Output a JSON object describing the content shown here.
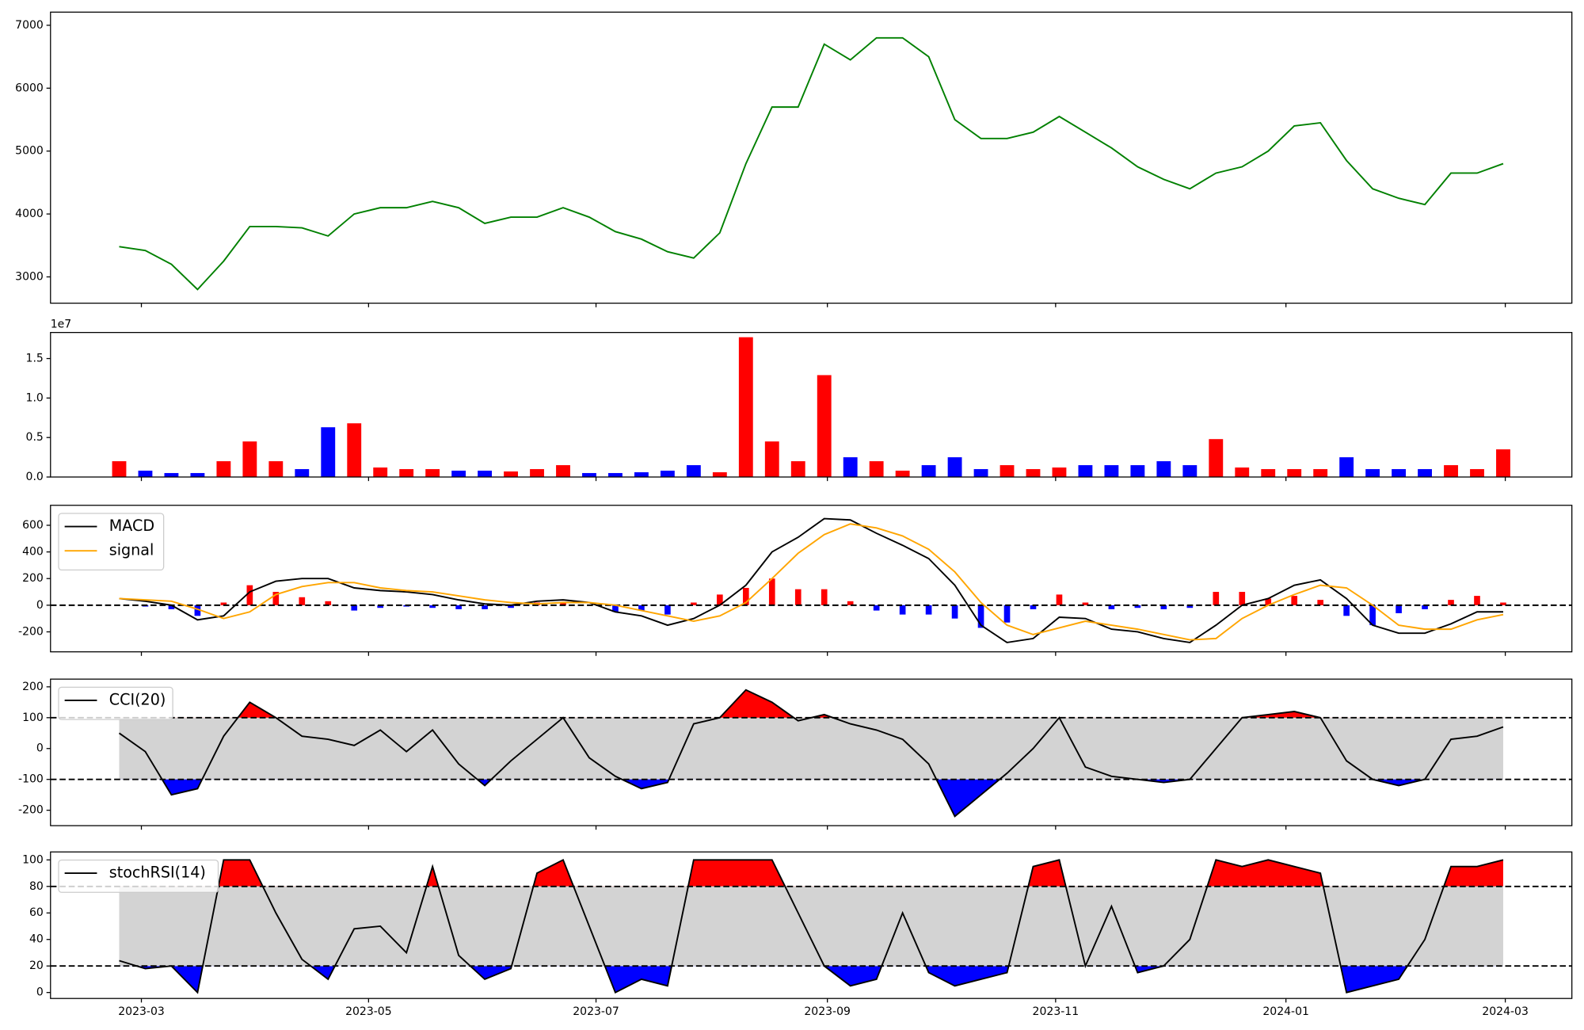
{
  "chart_data": [
    {
      "type": "line",
      "color": "green",
      "ylim": [
        2582,
        7209
      ],
      "yticks": [
        3000,
        4000,
        5000,
        6000,
        7000
      ],
      "values": [
        3480,
        3420,
        3200,
        2800,
        3250,
        3800,
        3800,
        3780,
        3650,
        4000,
        4100,
        4100,
        4200,
        4100,
        3850,
        3950,
        3950,
        4100,
        3950,
        3720,
        3600,
        3400,
        3300,
        3700,
        4800,
        5700,
        5700,
        6700,
        6450,
        6800,
        6800,
        6500,
        5500,
        5200,
        5200,
        5300,
        5550,
        5300,
        5050,
        4750,
        4550,
        4400,
        4650,
        4750,
        5000,
        5400,
        5450,
        4850,
        4400,
        4250,
        4150,
        4650,
        4650,
        4800
      ]
    },
    {
      "type": "bar",
      "offset_label": "1e7",
      "up_color": "red",
      "down_color": "blue",
      "ylim": [
        0,
        1.83
      ],
      "yticks": [
        {
          "value": 0,
          "label": "0.0"
        },
        0.5,
        {
          "value": 1,
          "label": "1.0"
        },
        1.5
      ],
      "values": [
        0.2,
        0.08,
        0.05,
        0.05,
        0.2,
        0.45,
        0.2,
        0.1,
        0.63,
        0.68,
        0.12,
        0.1,
        0.1,
        0.08,
        0.08,
        0.07,
        0.1,
        0.15,
        0.05,
        0.05,
        0.06,
        0.08,
        0.15,
        0.06,
        1.77,
        0.45,
        0.2,
        1.29,
        0.25,
        0.2,
        0.08,
        0.15,
        0.25,
        0.1,
        0.15,
        0.1,
        0.12,
        0.15,
        0.15,
        0.15,
        0.2,
        0.15,
        0.48,
        0.12,
        0.1,
        0.1,
        0.1,
        0.25,
        0.1,
        0.1,
        0.1,
        0.15,
        0.1,
        0.35
      ]
    },
    {
      "type": "macd",
      "ylim": [
        -350,
        750
      ],
      "yticks": [
        -200,
        0,
        200,
        400,
        600
      ],
      "baseline": 0,
      "legend": "upper left",
      "series": [
        {
          "name": "MACD",
          "color": "black",
          "values": [
            50,
            30,
            0,
            -110,
            -80,
            100,
            180,
            200,
            200,
            130,
            110,
            100,
            80,
            40,
            10,
            0,
            30,
            40,
            20,
            -50,
            -80,
            -150,
            -100,
            0,
            150,
            400,
            510,
            650,
            640,
            540,
            450,
            350,
            150,
            -150,
            -280,
            -250,
            -90,
            -100,
            -180,
            -200,
            -250,
            -280,
            -150,
            0,
            50,
            150,
            190,
            50,
            -150,
            -210,
            -210,
            -140,
            -50,
            -50
          ]
        },
        {
          "name": "signal",
          "color": "orange",
          "values": [
            50,
            40,
            30,
            -30,
            -100,
            -50,
            80,
            140,
            170,
            170,
            130,
            110,
            100,
            70,
            40,
            20,
            10,
            20,
            20,
            0,
            -40,
            -80,
            -120,
            -80,
            20,
            200,
            390,
            530,
            610,
            580,
            520,
            420,
            250,
            20,
            -150,
            -220,
            -170,
            -120,
            -150,
            -180,
            -220,
            -260,
            -250,
            -100,
            0,
            80,
            150,
            130,
            0,
            -150,
            -180,
            -180,
            -110,
            -70
          ]
        }
      ],
      "histogram": {
        "up_color": "red",
        "down_color": "blue",
        "values": [
          0,
          -10,
          -30,
          -80,
          20,
          150,
          100,
          60,
          30,
          -40,
          -20,
          -10,
          -20,
          -30,
          -30,
          -20,
          20,
          20,
          0,
          -50,
          -40,
          -70,
          20,
          80,
          130,
          200,
          120,
          120,
          30,
          -40,
          -70,
          -70,
          -100,
          -170,
          -130,
          -30,
          80,
          20,
          -30,
          -20,
          -30,
          -20,
          100,
          100,
          50,
          70,
          40,
          -80,
          -150,
          -60,
          -30,
          40,
          70,
          20
        ]
      }
    },
    {
      "type": "oscillator",
      "ylim": [
        -250,
        225
      ],
      "yticks": [
        -200,
        -100,
        0,
        100,
        200
      ],
      "bands": [
        -100,
        100
      ],
      "band_color": "lightgray",
      "over_color": "red",
      "under_color": "blue",
      "legend": "upper left",
      "series": [
        {
          "name": "CCI(20)",
          "color": "black",
          "values": [
            50,
            -10,
            -150,
            -130,
            40,
            150,
            100,
            40,
            30,
            10,
            60,
            -10,
            60,
            -50,
            -120,
            -40,
            30,
            100,
            -30,
            -90,
            -130,
            -110,
            80,
            100,
            190,
            150,
            90,
            110,
            80,
            60,
            30,
            -50,
            -220,
            -150,
            -80,
            0,
            100,
            -60,
            -90,
            -100,
            -110,
            -100,
            0,
            100,
            110,
            120,
            100,
            -40,
            -100,
            -120,
            -100,
            30,
            40,
            70
          ]
        }
      ]
    },
    {
      "type": "oscillator",
      "ylim": [
        -4.5,
        106
      ],
      "yticks": [
        0,
        20,
        40,
        60,
        80,
        100
      ],
      "bands": [
        20,
        80
      ],
      "band_color": "lightgray",
      "over_color": "red",
      "under_color": "blue",
      "legend": "upper left",
      "xlim": [
        -2.63,
        55.63
      ],
      "xticks": [
        {
          "value": 0.85,
          "label": "2023-03"
        },
        {
          "value": 9.55,
          "label": "2023-05"
        },
        {
          "value": 18.26,
          "label": "2023-07"
        },
        {
          "value": 27.12,
          "label": "2023-09"
        },
        {
          "value": 35.86,
          "label": "2023-11"
        },
        {
          "value": 44.68,
          "label": "2024-01"
        },
        {
          "value": 53.08,
          "label": "2024-03"
        }
      ],
      "series": [
        {
          "name": "stochRSI(14)",
          "color": "black",
          "values": [
            24,
            18,
            20,
            0,
            100,
            100,
            60,
            25,
            10,
            48,
            50,
            30,
            95,
            28,
            10,
            18,
            90,
            100,
            50,
            0,
            10,
            5,
            100,
            100,
            100,
            100,
            60,
            20,
            5,
            10,
            60,
            15,
            5,
            10,
            15,
            95,
            100,
            20,
            65,
            15,
            20,
            40,
            100,
            95,
            100,
            95,
            90,
            0,
            5,
            10,
            40,
            95,
            95,
            100
          ]
        }
      ]
    }
  ]
}
